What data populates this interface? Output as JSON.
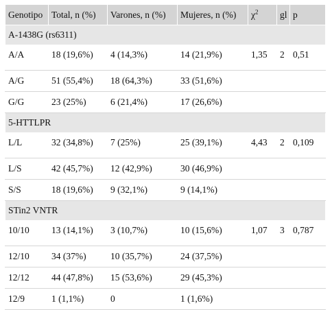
{
  "table": {
    "headers": [
      "Genotipo",
      "Total, n (%)",
      "Varones, n (%)",
      "Mujeres, n (%)",
      "χ",
      "gl",
      "p"
    ],
    "chi_superscript": "2",
    "sections": [
      {
        "title": "A-1438G (rs6311)",
        "rows": [
          [
            "A/A",
            "18 (19,6%)",
            "4 (14,3%)",
            "14 (21,9%)",
            "1,35",
            "2",
            "0,51"
          ],
          [
            "A/G",
            "51 (55,4%)",
            "18 (64,3%)",
            "33 (51,6%)",
            "",
            "",
            ""
          ],
          [
            "G/G",
            "23 (25%)",
            "6 (21,4%)",
            "17 (26,6%)",
            "",
            "",
            ""
          ]
        ]
      },
      {
        "title": "5-HTTLPR",
        "rows": [
          [
            "L/L",
            "32 (34,8%)",
            "7 (25%)",
            "25 (39,1%)",
            "4,43",
            "2",
            "0,109"
          ],
          [
            "L/S",
            "42 (45,7%)",
            "12 (42,9%)",
            "30 (46,9%)",
            "",
            "",
            ""
          ],
          [
            "S/S",
            "18 (19,6%)",
            "9 (32,1%)",
            "9 (14,1%)",
            "",
            "",
            ""
          ]
        ]
      },
      {
        "title": "STin2 VNTR",
        "rows": [
          [
            "10/10",
            "13 (14,1%)",
            "3 (10,7%)",
            "10 (15,6%)",
            "1,07",
            "3",
            "0,787"
          ],
          [
            "12/10",
            "34 (37%)",
            "10 (35,7%)",
            "24 (37,5%)",
            "",
            "",
            ""
          ],
          [
            "12/12",
            "44 (47,8%)",
            "15 (53,6%)",
            "29 (45,3%)",
            "",
            "",
            ""
          ],
          [
            "12/9",
            "1 (1,1%)",
            "0",
            "1 (1,6%)",
            "",
            "",
            ""
          ]
        ]
      }
    ]
  }
}
